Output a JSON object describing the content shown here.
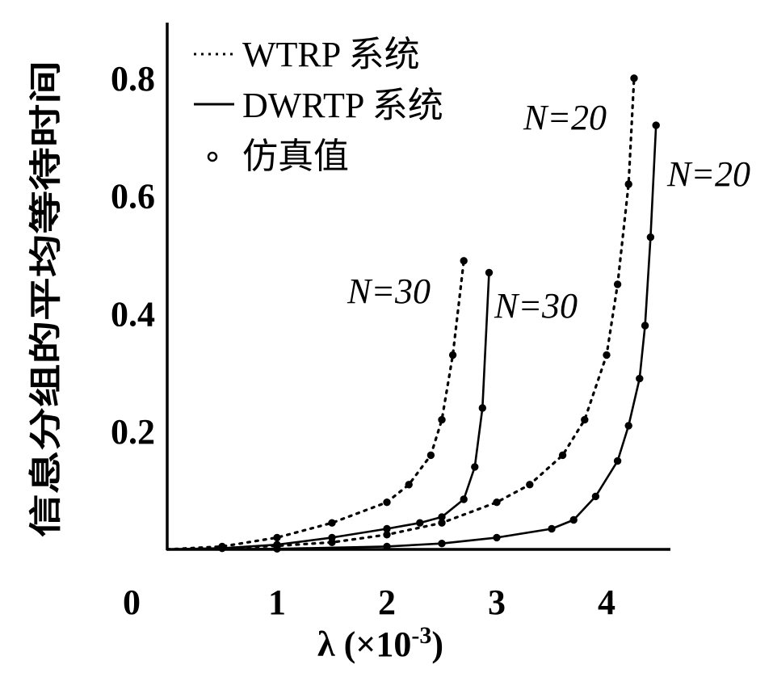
{
  "chart_data": {
    "type": "line",
    "title": "",
    "ylabel": "信息分组的平均等待时间",
    "xlabel": "λ (×10",
    "xlabel_exp": "-3",
    "xlabel_close": ")",
    "xlim": [
      0,
      4.6
    ],
    "ylim": [
      0,
      0.9
    ],
    "x_origin_label": "0",
    "x_ticks": [
      1,
      2,
      3,
      4
    ],
    "x_tick_labels": [
      "1",
      "2",
      "3",
      "4"
    ],
    "y_ticks": [
      0.2,
      0.4,
      0.6,
      0.8
    ],
    "y_tick_labels": [
      "0.2",
      "0.4",
      "0.6",
      "0.8"
    ],
    "grid": false,
    "legend_position": "top-left",
    "legend": [
      {
        "label": "WTRP 系统",
        "style": "dotted"
      },
      {
        "label": "DWRTP 系统",
        "style": "solid"
      },
      {
        "label": "仿真值",
        "style": "marker"
      }
    ],
    "series": [
      {
        "name": "WTRP 系统",
        "style": "dotted",
        "group": "N=30",
        "x": [
          0,
          0.5,
          1.0,
          1.5,
          2.0,
          2.2,
          2.4,
          2.5,
          2.6,
          2.7
        ],
        "y": [
          0,
          0.005,
          0.02,
          0.045,
          0.08,
          0.11,
          0.16,
          0.22,
          0.33,
          0.49
        ]
      },
      {
        "name": "DWRTP 系统",
        "style": "solid",
        "group": "N=30",
        "x": [
          0,
          0.5,
          1.0,
          1.5,
          2.0,
          2.3,
          2.5,
          2.7,
          2.8,
          2.87,
          2.93
        ],
        "y": [
          0,
          0.002,
          0.008,
          0.02,
          0.035,
          0.045,
          0.055,
          0.085,
          0.14,
          0.24,
          0.47
        ]
      },
      {
        "name": "WTRP 系统",
        "style": "dotted",
        "group": "N=20",
        "x": [
          0,
          0.5,
          1.0,
          1.5,
          2.0,
          2.5,
          3.0,
          3.3,
          3.6,
          3.8,
          4.0,
          4.1,
          4.2,
          4.25
        ],
        "y": [
          0,
          0.002,
          0.006,
          0.012,
          0.025,
          0.045,
          0.08,
          0.11,
          0.16,
          0.22,
          0.33,
          0.45,
          0.62,
          0.8
        ]
      },
      {
        "name": "DWRTP 系统",
        "style": "solid",
        "group": "N=20",
        "x": [
          0,
          1.0,
          2.0,
          2.5,
          3.0,
          3.5,
          3.7,
          3.9,
          4.1,
          4.2,
          4.3,
          4.35,
          4.4,
          4.45
        ],
        "y": [
          0,
          0.001,
          0.005,
          0.01,
          0.02,
          0.035,
          0.05,
          0.09,
          0.15,
          0.21,
          0.29,
          0.38,
          0.53,
          0.72
        ]
      }
    ],
    "annotations": [
      {
        "text": "N=20",
        "near_series": 2
      },
      {
        "text": "N=20",
        "near_series": 3
      },
      {
        "text": "N=30",
        "near_series": 0
      },
      {
        "text": "N=30",
        "near_series": 1
      }
    ]
  },
  "colors": {
    "line": "#000000",
    "background": "#ffffff"
  }
}
